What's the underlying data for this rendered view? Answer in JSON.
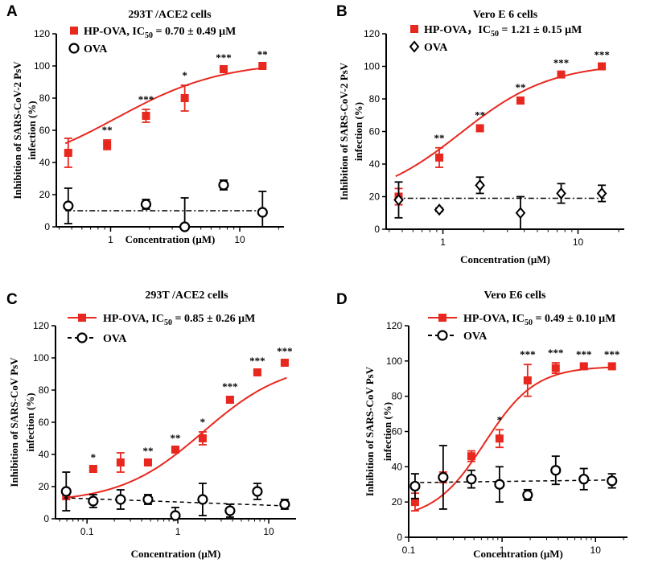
{
  "colors": {
    "hp": "#e8281f",
    "ova": "#000000"
  },
  "chart_data": [
    {
      "panel": "A",
      "type": "scatter",
      "title": "293T /ACE2 cells",
      "xlabel": "Concentration (μM)",
      "ylabel": [
        "Inhibition of SARS-CoV-2 PsV",
        "infection (%)"
      ],
      "xscale": "log",
      "xlim": [
        0.38,
        22
      ],
      "ylim": [
        0,
        120
      ],
      "xticks": [
        1,
        10
      ],
      "xtick_labels": [
        "1",
        "10"
      ],
      "yticks": [
        0,
        20,
        40,
        60,
        80,
        100,
        120
      ],
      "ytick_labels": [
        "0",
        "20",
        "40",
        "60",
        "80",
        "100",
        "120"
      ],
      "legend_position": "top-left",
      "legend_style": "compact",
      "series": [
        {
          "name": "HP-OVA",
          "legend_label": "HP-OVA, IC",
          "legend_sub": "50",
          "legend_suffix": " = 0.70 ± 0.49 μM",
          "marker": "square",
          "x": [
            0.47,
            0.94,
            1.88,
            3.75,
            7.5,
            15
          ],
          "y": [
            46,
            51,
            69,
            80,
            98,
            100
          ],
          "err": [
            9,
            3,
            4,
            8,
            1,
            1
          ],
          "fit": {
            "bottom": 32,
            "top": 103,
            "ec50": 1.1,
            "hill": 1.05
          },
          "fit_style": "solid",
          "significance": [
            "",
            "**",
            "***",
            "*",
            "***",
            "**"
          ]
        },
        {
          "name": "OVA",
          "legend_label": "OVA",
          "marker": "circle",
          "x": [
            0.47,
            1.88,
            3.75,
            7.5,
            15
          ],
          "y": [
            13,
            14,
            0,
            26,
            9
          ],
          "err": [
            11,
            3,
            18,
            3,
            13
          ],
          "fit": {
            "flat": 10
          },
          "fit_style": "dashdot"
        }
      ]
    },
    {
      "panel": "B",
      "type": "scatter",
      "title": "Vero E 6 cells",
      "xlabel": "Concentration (μM)",
      "ylabel": [
        "Inhibition of SARS-CoV-2 PsV",
        "infection (%)"
      ],
      "xscale": "log",
      "xlim": [
        0.38,
        22
      ],
      "ylim": [
        0,
        120
      ],
      "xticks": [
        1,
        10
      ],
      "xtick_labels": [
        "1",
        "10"
      ],
      "yticks": [
        0,
        20,
        40,
        60,
        80,
        100,
        120
      ],
      "ytick_labels": [
        "0",
        "20",
        "40",
        "60",
        "80",
        "100",
        "120"
      ],
      "legend_position": "top-left",
      "legend_style": "compact",
      "series": [
        {
          "name": "HP-OVA",
          "legend_label": "HP-OVA，IC",
          "legend_sub": "50",
          "legend_suffix": " = 1.21 ± 0.15 μM",
          "marker": "square",
          "x": [
            0.47,
            0.94,
            1.88,
            3.75,
            7.5,
            15
          ],
          "y": [
            20,
            44,
            62,
            79,
            95,
            100
          ],
          "err": [
            5,
            6,
            2,
            2,
            1,
            1
          ],
          "fit": {
            "bottom": 16,
            "top": 102,
            "ec50": 1.35,
            "hill": 1.3
          },
          "fit_style": "solid",
          "significance": [
            "",
            "**",
            "**",
            "**",
            "***",
            "***"
          ]
        },
        {
          "name": "OVA",
          "legend_label": "OVA",
          "marker": "diamond",
          "x": [
            0.47,
            0.94,
            1.88,
            3.75,
            7.5,
            15
          ],
          "y": [
            18,
            12,
            27,
            10,
            22,
            22
          ],
          "err": [
            11,
            1,
            5,
            10,
            6,
            5
          ],
          "fit": {
            "flat": 19
          },
          "fit_style": "dashdot"
        }
      ]
    },
    {
      "panel": "C",
      "type": "scatter",
      "title": "293T /ACE2 cells",
      "xlabel": "Concentration (μM)",
      "ylabel": [
        "Inhibition of SARS-CoV  PsV",
        "infection (%)"
      ],
      "xscale": "log",
      "xlim": [
        0.045,
        20
      ],
      "ylim": [
        0,
        120
      ],
      "xticks": [
        0.1,
        1,
        10
      ],
      "xtick_labels": [
        "0.1",
        "1",
        "10"
      ],
      "yticks": [
        0,
        20,
        40,
        60,
        80,
        100,
        120
      ],
      "ytick_labels": [
        "0",
        "20",
        "40",
        "60",
        "80",
        "100",
        "120"
      ],
      "legend_position": "top-left",
      "legend_style": "line",
      "series": [
        {
          "name": "HP-OVA",
          "legend_label": "HP-OVA, IC",
          "legend_sub": "50",
          "legend_suffix": " = 0.85 ± 0.26 μM",
          "marker": "square",
          "x": [
            0.059,
            0.117,
            0.234,
            0.469,
            0.938,
            1.875,
            3.75,
            7.5,
            15
          ],
          "y": [
            14,
            31,
            35,
            35,
            43,
            50,
            74,
            91,
            97
          ],
          "err": [
            1,
            1,
            6,
            1,
            1,
            4,
            2,
            1,
            1
          ],
          "fit": {
            "bottom": 10,
            "top": 98,
            "ec50": 1.9,
            "hill": 0.95
          },
          "fit_style": "solid",
          "significance": [
            "",
            "*",
            "",
            "**",
            "**",
            "*",
            "***",
            "***",
            "***"
          ]
        },
        {
          "name": "OVA",
          "legend_label": "OVA",
          "marker": "circle",
          "x": [
            0.059,
            0.117,
            0.234,
            0.469,
            0.938,
            1.875,
            3.75,
            7.5,
            15
          ],
          "y": [
            17,
            11,
            12,
            12,
            2,
            12,
            5,
            17,
            9
          ],
          "err": [
            12,
            4,
            6,
            3,
            5,
            10,
            4,
            5,
            3
          ],
          "fit": {
            "from": 13,
            "to": 8
          },
          "fit_style": "dashed"
        }
      ]
    },
    {
      "panel": "D",
      "type": "scatter",
      "title": "Vero E6 cells",
      "xlabel": "Concentration (μM)",
      "ylabel": [
        "Inhibition of SARS-CoV  PsV",
        "infection (%)"
      ],
      "xscale": "log",
      "xlim": [
        0.1,
        22
      ],
      "ylim": [
        0,
        120
      ],
      "xticks": [
        0.1,
        1,
        10
      ],
      "xtick_labels": [
        "0.1",
        "1",
        "10"
      ],
      "yticks": [
        0,
        20,
        40,
        60,
        80,
        100,
        120
      ],
      "ytick_labels": [
        "0",
        "20",
        "40",
        "60",
        "80",
        "100",
        "120"
      ],
      "legend_position": "top-left",
      "legend_style": "line",
      "series": [
        {
          "name": "HP-OVA",
          "legend_label": "HP-OVA, IC",
          "legend_sub": "50",
          "legend_suffix": " = 0.49 ± 0.10 μM",
          "marker": "square",
          "x": [
            0.117,
            0.234,
            0.469,
            0.938,
            1.875,
            3.75,
            7.5,
            15
          ],
          "y": [
            20,
            34,
            46,
            56,
            89,
            96,
            97,
            97
          ],
          "err": [
            5,
            3,
            3,
            5,
            9,
            3,
            1,
            1
          ],
          "fit": {
            "bottom": 10,
            "top": 97,
            "ec50": 0.65,
            "hill": 1.6
          },
          "fit_style": "solid",
          "significance": [
            "",
            "",
            "",
            "*",
            "***",
            "***",
            "***",
            "***"
          ]
        },
        {
          "name": "OVA",
          "legend_label": "OVA",
          "marker": "circle",
          "x": [
            0.117,
            0.234,
            0.469,
            0.938,
            1.875,
            3.75,
            7.5,
            15
          ],
          "y": [
            29,
            34,
            33,
            30,
            24,
            38,
            33,
            32
          ],
          "err": [
            7,
            18,
            5,
            10,
            3,
            8,
            6,
            4
          ],
          "fit": {
            "from": 31,
            "to": 32.5
          },
          "fit_style": "dashed"
        }
      ]
    }
  ]
}
